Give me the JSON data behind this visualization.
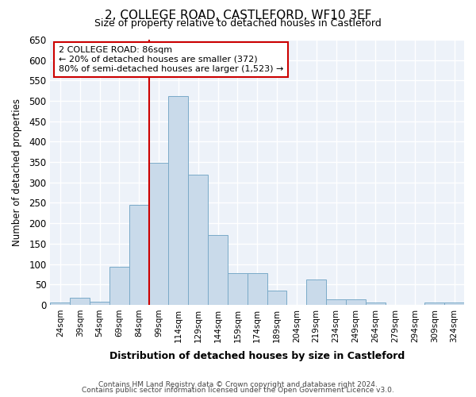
{
  "title": "2, COLLEGE ROAD, CASTLEFORD, WF10 3EF",
  "subtitle": "Size of property relative to detached houses in Castleford",
  "xlabel": "Distribution of detached houses by size in Castleford",
  "ylabel": "Number of detached properties",
  "bar_color": "#c9daea",
  "bar_edge_color": "#7aaac8",
  "background_color": "#edf2f9",
  "grid_color": "#ffffff",
  "categories": [
    "24sqm",
    "39sqm",
    "54sqm",
    "69sqm",
    "84sqm",
    "99sqm",
    "114sqm",
    "129sqm",
    "144sqm",
    "159sqm",
    "174sqm",
    "189sqm",
    "204sqm",
    "219sqm",
    "234sqm",
    "249sqm",
    "264sqm",
    "279sqm",
    "294sqm",
    "309sqm",
    "324sqm"
  ],
  "values": [
    5,
    18,
    7,
    93,
    246,
    349,
    511,
    319,
    172,
    78,
    78,
    35,
    0,
    63,
    13,
    13,
    5,
    0,
    0,
    5,
    5
  ],
  "prop_bar_index": 4,
  "property_line_color": "#cc0000",
  "annotation_line1": "2 COLLEGE ROAD: 86sqm",
  "annotation_line2": "← 20% of detached houses are smaller (372)",
  "annotation_line3": "80% of semi-detached houses are larger (1,523) →",
  "annotation_box_color": "#ffffff",
  "annotation_box_edge_color": "#cc0000",
  "ylim": [
    0,
    650
  ],
  "yticks": [
    0,
    50,
    100,
    150,
    200,
    250,
    300,
    350,
    400,
    450,
    500,
    550,
    600,
    650
  ],
  "footer1": "Contains HM Land Registry data © Crown copyright and database right 2024.",
  "footer2": "Contains public sector information licensed under the Open Government Licence v3.0.",
  "fig_bg": "#ffffff"
}
